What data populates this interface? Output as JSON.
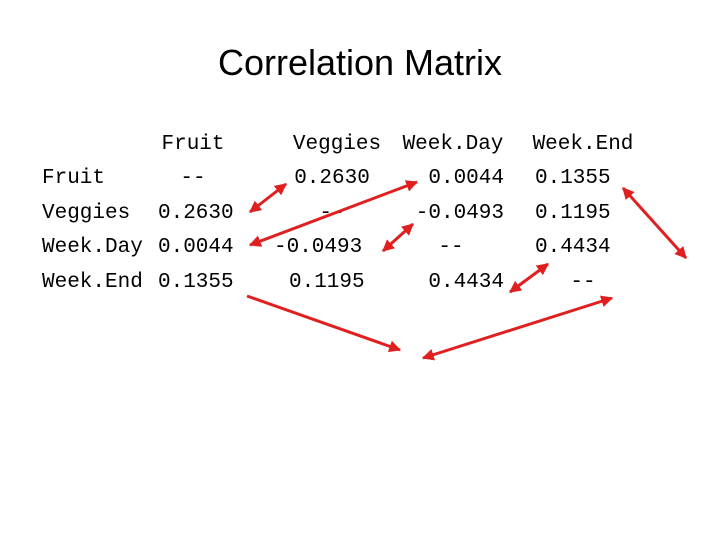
{
  "title": "Correlation Matrix",
  "columns": [
    "Fruit",
    "Veggies",
    "Week.Day",
    "Week.End"
  ],
  "rows": [
    {
      "label": "Fruit",
      "cells": [
        "--",
        "0.2630",
        "0.0044",
        "0.1355"
      ]
    },
    {
      "label": "Veggies",
      "cells": [
        "0.2630",
        "--",
        "-0.0493",
        "0.1195"
      ]
    },
    {
      "label": "Week.Day",
      "cells": [
        "0.0044",
        "-0.0493",
        "--",
        "0.4434"
      ]
    },
    {
      "label": "Week.End",
      "cells": [
        "0.1355",
        "0.1195",
        "0.4434",
        "--"
      ]
    }
  ],
  "arrow_color": "#e02020"
}
